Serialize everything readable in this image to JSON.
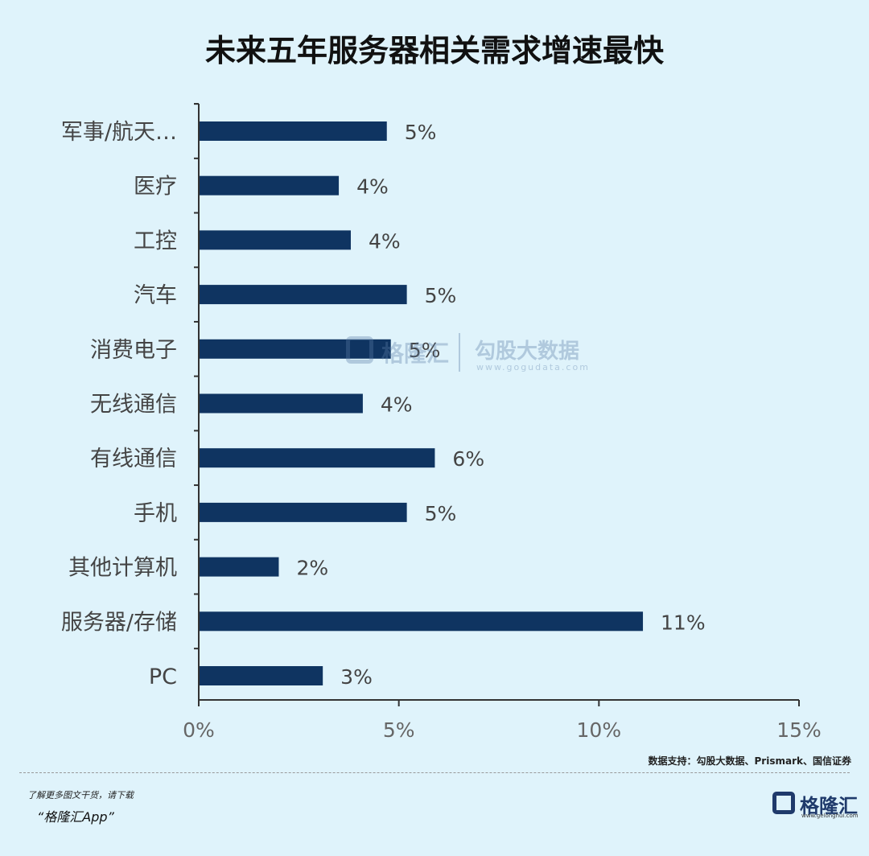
{
  "title": "未来五年服务器相关需求增速最快",
  "chart_data": {
    "type": "bar",
    "orientation": "horizontal",
    "title": "未来五年服务器相关需求增速最快",
    "categories": [
      "军事/航天…",
      "医疗",
      "工控",
      "汽车",
      "消费电子",
      "无线通信",
      "有线通信",
      "手机",
      "其他计算机",
      "服务器/存储",
      "PC"
    ],
    "values": [
      4.7,
      3.5,
      3.8,
      5.2,
      4.8,
      4.1,
      5.9,
      5.2,
      2.0,
      11.1,
      3.1
    ],
    "data_labels": [
      "5%",
      "4%",
      "4%",
      "5%",
      "5%",
      "4%",
      "6%",
      "5%",
      "2%",
      "11%",
      "3%"
    ],
    "xlim": [
      0,
      15
    ],
    "xticks": [
      0,
      5,
      10,
      15
    ],
    "xtick_labels": [
      "0%",
      "5%",
      "10%",
      "15%"
    ],
    "bar_color": "#0f3461",
    "grid": false
  },
  "watermark": {
    "brand": "格隆汇",
    "name": "勾股大数据",
    "url": "www.gogudata.com"
  },
  "source": "数据支持：勾股大数据、Prismark、国信证券",
  "footer": {
    "promo_line1": "了解更多图文干货，请下载",
    "promo_line2": "“格隆汇App”",
    "logo_name": "格隆汇",
    "logo_url": "www.gelonghui.com"
  }
}
